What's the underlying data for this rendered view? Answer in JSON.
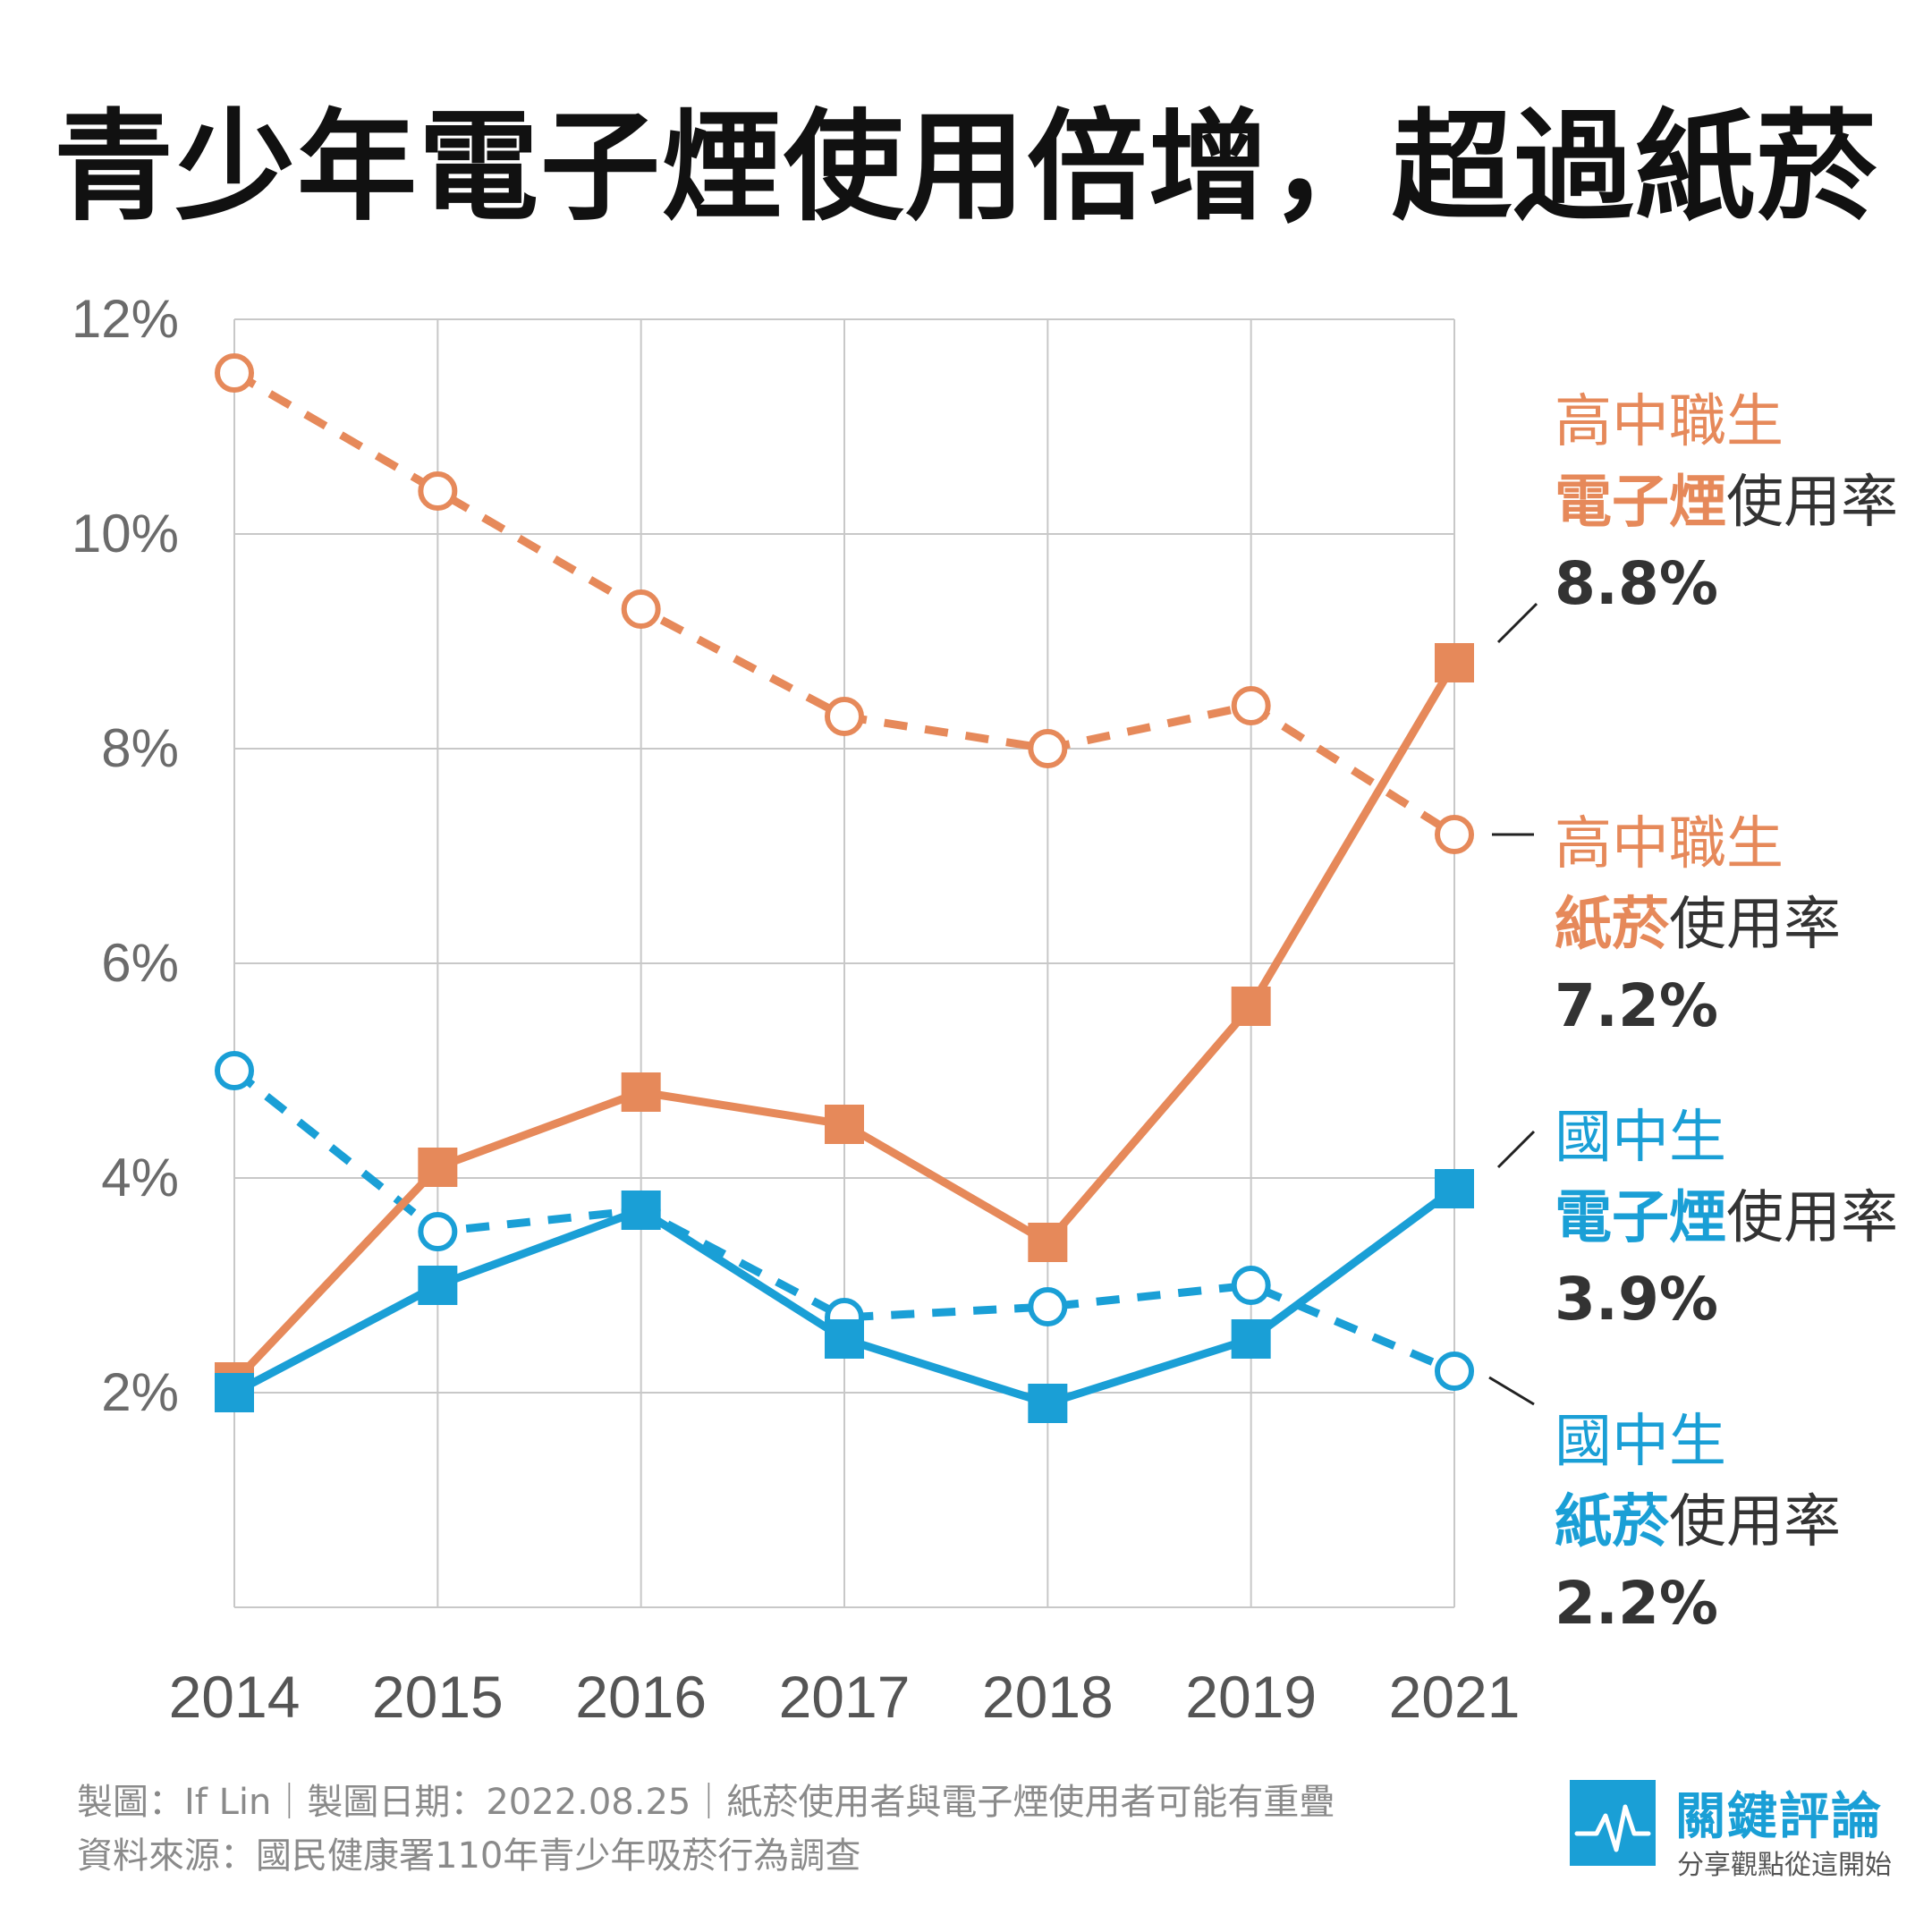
{
  "title": "青少年電子煙使用倍增，超過紙菸",
  "chart_data": {
    "type": "line",
    "categories": [
      "2014",
      "2015",
      "2016",
      "2017",
      "2018",
      "2019",
      "2021"
    ],
    "y_ticks": [
      "12%",
      "10%",
      "8%",
      "6%",
      "4%",
      "2%"
    ],
    "ylim": [
      0,
      12
    ],
    "grid": true,
    "series": [
      {
        "name": "高中職生 電子煙使用率",
        "values": [
          2.1,
          4.1,
          4.8,
          4.5,
          3.4,
          5.6,
          8.8
        ],
        "color": "#e6895a",
        "style": "solid",
        "marker": "square"
      },
      {
        "name": "高中職生 紙菸使用率",
        "values": [
          11.5,
          10.4,
          9.3,
          8.3,
          8.0,
          8.4,
          7.2
        ],
        "color": "#e6895a",
        "style": "dashed",
        "marker": "open-circle"
      },
      {
        "name": "國中生 電子煙使用率",
        "values": [
          2.0,
          3.0,
          3.7,
          2.5,
          1.9,
          2.5,
          3.9
        ],
        "color": "#1a9fd6",
        "style": "solid",
        "marker": "square"
      },
      {
        "name": "國中生 紙菸使用率",
        "values": [
          5.0,
          3.5,
          3.7,
          2.7,
          2.8,
          3.0,
          2.2
        ],
        "color": "#1a9fd6",
        "style": "dashed",
        "marker": "open-circle"
      }
    ]
  },
  "labels": [
    {
      "group": "高中職生",
      "product": "電子煙",
      "suffix": "使用率",
      "value": "8.8%"
    },
    {
      "group": "高中職生",
      "product": "紙菸",
      "suffix": "使用率",
      "value": "7.2%"
    },
    {
      "group": "國中生",
      "product": "電子煙",
      "suffix": "使用率",
      "value": "3.9%"
    },
    {
      "group": "國中生",
      "product": "紙菸",
      "suffix": "使用率",
      "value": "2.2%"
    }
  ],
  "footer": {
    "line1": "製圖：If Lin｜製圖日期：2022.08.25｜紙菸使用者與電子煙使用者可能有重疊",
    "line2": "資料來源：國民健康署110年青少年吸菸行為調查"
  },
  "logo": {
    "name": "關鍵評論",
    "tagline": "分享觀點從這開始",
    "icon": "pulse-icon"
  }
}
